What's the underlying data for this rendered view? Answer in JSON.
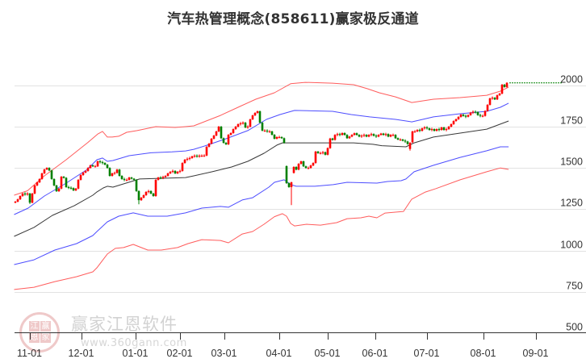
{
  "title": "汽车热管理概念(858611)赢家极反通道",
  "watermark": {
    "brand": "赢家江恩软件",
    "url": "www.360gann.com",
    "seal_chars": [
      "江",
      "赢",
      "恩",
      "家"
    ]
  },
  "colors": {
    "up_candle": "#ff0000",
    "down_candle": "#008000",
    "grid": "#e2e2e2",
    "axis": "#333333",
    "last_price_line": "#008000"
  },
  "chart_data": {
    "type": "line",
    "subtype": "candlestick with channel bands",
    "title": "汽车热管理概念(858611)赢家极反通道",
    "xlabel": "",
    "ylabel": "",
    "ylim": [
      500,
      2000
    ],
    "grid": true,
    "legend": "none",
    "y_ticks": [
      500,
      750,
      1000,
      1250,
      1500,
      1750,
      2000
    ],
    "x_ticks": [
      {
        "label": "11-01",
        "index": 6
      },
      {
        "label": "12-01",
        "index": 27.3
      },
      {
        "label": "01-01",
        "index": 49.7
      },
      {
        "label": "02-01",
        "index": 68
      },
      {
        "label": "03-01",
        "index": 86.3
      },
      {
        "label": "04-01",
        "index": 109
      },
      {
        "label": "05-01",
        "index": 129
      },
      {
        "label": "06-01",
        "index": 148.7
      },
      {
        "label": "07-01",
        "index": 170
      },
      {
        "label": "08-01",
        "index": 193.3
      },
      {
        "label": "09-01",
        "index": 215
      }
    ],
    "last_price": 2015,
    "candles": {
      "first_open": 1290,
      "close": [
        1296,
        1310,
        1330,
        1345,
        1340,
        1345,
        1290,
        1345,
        1394,
        1413,
        1433,
        1467,
        1491,
        1500,
        1485,
        1433,
        1394,
        1359,
        1375,
        1447,
        1440,
        1384,
        1380,
        1378,
        1364,
        1375,
        1428,
        1457,
        1472,
        1482,
        1500,
        1516,
        1510,
        1510,
        1540,
        1535,
        1530,
        1520,
        1500,
        1452,
        1467,
        1470,
        1490,
        1452,
        1433,
        1428,
        1428,
        1442,
        1435,
        1428,
        1360,
        1305,
        1320,
        1335,
        1355,
        1360,
        1345,
        1330,
        1428,
        1442,
        1440,
        1445,
        1452,
        1467,
        1477,
        1482,
        1467,
        1477,
        1482,
        1530,
        1550,
        1555,
        1560,
        1570,
        1574,
        1570,
        1574,
        1574,
        1575,
        1628,
        1647,
        1677,
        1696,
        1721,
        1750,
        1680,
        1652,
        1643,
        1701,
        1711,
        1735,
        1750,
        1765,
        1770,
        1774,
        1745,
        1750,
        1794,
        1818,
        1833,
        1843,
        1774,
        1726,
        1726,
        1721,
        1721,
        1701,
        1677,
        1687,
        1687,
        1680,
        1652,
        1408,
        1384,
        1413,
        1506,
        1490,
        1525,
        1540,
        1510,
        1500,
        1500,
        1515,
        1530,
        1599,
        1590,
        1590,
        1595,
        1580,
        1620,
        1678,
        1670,
        1700,
        1705,
        1700,
        1711,
        1700,
        1680,
        1690,
        1700,
        1710,
        1700,
        1690,
        1695,
        1700,
        1690,
        1700,
        1705,
        1695,
        1690,
        1700,
        1708,
        1700,
        1705,
        1690,
        1700,
        1700,
        1680,
        1672,
        1672,
        1665,
        1660,
        1645,
        1652,
        1721,
        1721,
        1730,
        1725,
        1740,
        1745,
        1740,
        1730,
        1735,
        1725,
        1735,
        1730,
        1745,
        1730,
        1735,
        1750,
        1765,
        1784,
        1795,
        1809,
        1823,
        1815,
        1810,
        1820,
        1835,
        1840,
        1838,
        1820,
        1815,
        1815,
        1845,
        1882,
        1921,
        1925,
        1915,
        1940,
        1950,
        2004,
        1990,
        2015
      ],
      "overrides": [
        {
          "i": 6,
          "l": 1282
        },
        {
          "i": 51,
          "l": 1280
        },
        {
          "i": 112,
          "o": 1511
        },
        {
          "i": 114,
          "o": 1384,
          "l": 1275
        },
        {
          "i": 115,
          "o": 1470
        },
        {
          "i": 163,
          "o": 1615,
          "l": 1605
        },
        {
          "i": 164,
          "o": 1655
        }
      ]
    },
    "series": [
      {
        "name": "upper-outer-band",
        "color": "#ff4a4a",
        "points": [
          [
            -0.5,
            1335
          ],
          [
            5,
            1362
          ],
          [
            12,
            1452
          ],
          [
            21,
            1550
          ],
          [
            30,
            1655
          ],
          [
            34,
            1705
          ],
          [
            36,
            1721
          ],
          [
            38,
            1687
          ],
          [
            40,
            1687
          ],
          [
            42.7,
            1692
          ],
          [
            46,
            1716
          ],
          [
            50.3,
            1726
          ],
          [
            58,
            1750
          ],
          [
            66,
            1745
          ],
          [
            70.3,
            1750
          ],
          [
            73.7,
            1755
          ],
          [
            84.7,
            1818
          ],
          [
            92.7,
            1872
          ],
          [
            99.3,
            1916
          ],
          [
            107,
            1955
          ],
          [
            113.7,
            2010
          ],
          [
            119.7,
            2018
          ],
          [
            131,
            2013
          ],
          [
            139.7,
            2004
          ],
          [
            145.3,
            1980
          ],
          [
            150.3,
            1955
          ],
          [
            157,
            1930
          ],
          [
            163.7,
            1896
          ],
          [
            172.7,
            1916
          ],
          [
            183.7,
            1926
          ],
          [
            194.7,
            1940
          ],
          [
            200.3,
            1965
          ],
          [
            203.7,
            1989
          ]
        ]
      },
      {
        "name": "upper-inner-band",
        "color": "#3a3aff",
        "points": [
          [
            -0.5,
            1218
          ],
          [
            5.3,
            1257
          ],
          [
            12,
            1330
          ],
          [
            21,
            1408
          ],
          [
            29.7,
            1491
          ],
          [
            33.7,
            1550
          ],
          [
            36,
            1560
          ],
          [
            38,
            1540
          ],
          [
            40.3,
            1545
          ],
          [
            47,
            1574
          ],
          [
            56,
            1592
          ],
          [
            64.7,
            1597
          ],
          [
            70.3,
            1603
          ],
          [
            73.7,
            1613
          ],
          [
            79.3,
            1638
          ],
          [
            87,
            1677
          ],
          [
            96,
            1726
          ],
          [
            103.7,
            1794
          ],
          [
            109.3,
            1823
          ],
          [
            115.3,
            1848
          ],
          [
            131,
            1843
          ],
          [
            138.7,
            1823
          ],
          [
            146.3,
            1809
          ],
          [
            157,
            1794
          ],
          [
            163.7,
            1779
          ],
          [
            172.7,
            1809
          ],
          [
            183.7,
            1828
          ],
          [
            194.7,
            1843
          ],
          [
            200.3,
            1867
          ],
          [
            203.7,
            1892
          ]
        ]
      },
      {
        "name": "middle-line",
        "color": "#222222",
        "points": [
          [
            -0.5,
            1086
          ],
          [
            7.7,
            1140
          ],
          [
            15.3,
            1213
          ],
          [
            24.3,
            1271
          ],
          [
            32,
            1335
          ],
          [
            33.7,
            1355
          ],
          [
            36.3,
            1379
          ],
          [
            38,
            1389
          ],
          [
            40.3,
            1384
          ],
          [
            51.3,
            1433
          ],
          [
            70.3,
            1442
          ],
          [
            73.7,
            1452
          ],
          [
            81.3,
            1477
          ],
          [
            89.3,
            1506
          ],
          [
            96,
            1540
          ],
          [
            102.7,
            1589
          ],
          [
            108,
            1638
          ],
          [
            110.3,
            1652
          ],
          [
            131,
            1652
          ],
          [
            139.7,
            1652
          ],
          [
            147.7,
            1643
          ],
          [
            151.3,
            1635
          ],
          [
            161.3,
            1628
          ],
          [
            164.7,
            1652
          ],
          [
            172.7,
            1687
          ],
          [
            183.7,
            1711
          ],
          [
            194.7,
            1735
          ],
          [
            203.7,
            1784
          ]
        ]
      },
      {
        "name": "lower-inner-band",
        "color": "#3a3aff",
        "points": [
          [
            -0.5,
            915
          ],
          [
            7.7,
            944
          ],
          [
            16.3,
            1003
          ],
          [
            25.3,
            1042
          ],
          [
            32,
            1091
          ],
          [
            33.7,
            1115
          ],
          [
            38,
            1174
          ],
          [
            42.7,
            1208
          ],
          [
            48.7,
            1228
          ],
          [
            54.7,
            1208
          ],
          [
            62.7,
            1208
          ],
          [
            70.3,
            1228
          ],
          [
            77,
            1257
          ],
          [
            84.7,
            1267
          ],
          [
            88,
            1262
          ],
          [
            93.7,
            1306
          ],
          [
            98,
            1320
          ],
          [
            104.7,
            1384
          ],
          [
            107,
            1413
          ],
          [
            111,
            1428
          ],
          [
            113.7,
            1399
          ],
          [
            116,
            1389
          ],
          [
            123.7,
            1389
          ],
          [
            131.3,
            1399
          ],
          [
            137,
            1413
          ],
          [
            149.3,
            1408
          ],
          [
            153.7,
            1418
          ],
          [
            159.3,
            1423
          ],
          [
            161.3,
            1433
          ],
          [
            164.7,
            1477
          ],
          [
            172.7,
            1516
          ],
          [
            183.7,
            1564
          ],
          [
            194.7,
            1604
          ],
          [
            200.3,
            1628
          ],
          [
            203.7,
            1628
          ]
        ]
      },
      {
        "name": "lower-outer-band",
        "color": "#ff4a4a",
        "points": [
          [
            -0.5,
            764
          ],
          [
            7.7,
            778
          ],
          [
            16.3,
            812
          ],
          [
            25.3,
            842
          ],
          [
            32,
            871
          ],
          [
            33.7,
            896
          ],
          [
            38,
            979
          ],
          [
            41.3,
            1013
          ],
          [
            44.7,
            1018
          ],
          [
            48.7,
            1037
          ],
          [
            54.7,
            1003
          ],
          [
            60.3,
            1003
          ],
          [
            67,
            1018
          ],
          [
            71.3,
            1042
          ],
          [
            77,
            1066
          ],
          [
            84.7,
            1061
          ],
          [
            88,
            1047
          ],
          [
            93.7,
            1100
          ],
          [
            98,
            1115
          ],
          [
            102.7,
            1159
          ],
          [
            107,
            1205
          ],
          [
            110.3,
            1223
          ],
          [
            112,
            1208
          ],
          [
            113.7,
            1164
          ],
          [
            115.3,
            1149
          ],
          [
            120.3,
            1159
          ],
          [
            126,
            1154
          ],
          [
            132.7,
            1169
          ],
          [
            137,
            1193
          ],
          [
            142.7,
            1198
          ],
          [
            146,
            1208
          ],
          [
            149.3,
            1198
          ],
          [
            152.7,
            1227
          ],
          [
            160.3,
            1237
          ],
          [
            163.7,
            1311
          ],
          [
            169.3,
            1354
          ],
          [
            173.7,
            1375
          ],
          [
            183.7,
            1428
          ],
          [
            194.7,
            1477
          ],
          [
            200.3,
            1500
          ],
          [
            203.7,
            1491
          ]
        ]
      }
    ]
  }
}
